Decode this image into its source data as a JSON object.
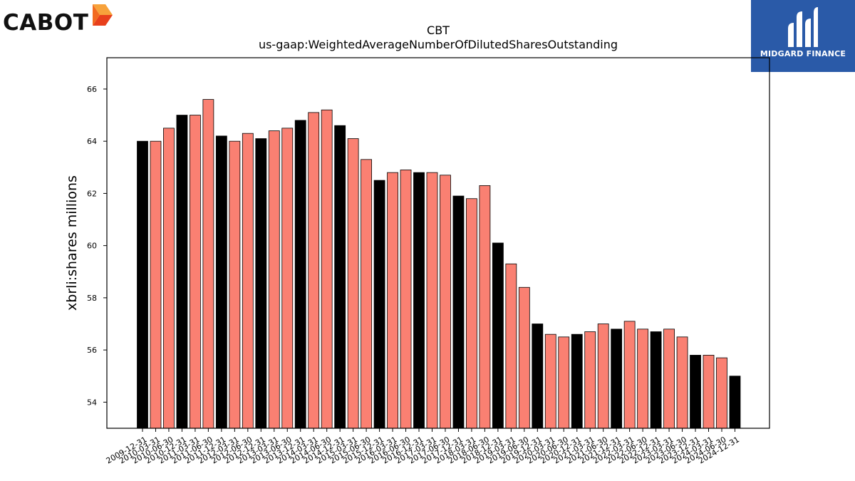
{
  "logos": {
    "left_brand": "CABOT",
    "right_brand": "MIDGARD FINANCE"
  },
  "colors": {
    "bar_black": "#000000",
    "bar_salmon": "#fa8072",
    "midgard_blue": "#2a5aa8",
    "cabot_orange": "#f26b21"
  },
  "chart_data": {
    "type": "bar",
    "title": "CBT",
    "subtitle": "us-gaap:WeightedAverageNumberOfDilutedSharesOutstanding",
    "ylabel": "xbrli:shares millions",
    "xlabel": "",
    "ylim": [
      53,
      67.2
    ],
    "yticks": [
      54,
      56,
      58,
      60,
      62,
      64,
      66
    ],
    "grid": false,
    "categories": [
      "2009-12-31",
      "2010-03-31",
      "2010-06-30",
      "2010-12-31",
      "2011-03-31",
      "2011-06-30",
      "2011-12-31",
      "2012-03-31",
      "2012-06-30",
      "2012-12-31",
      "2013-03-31",
      "2013-06-30",
      "2013-12-31",
      "2014-03-31",
      "2014-06-30",
      "2014-12-31",
      "2015-03-31",
      "2015-06-30",
      "2015-12-31",
      "2016-03-31",
      "2016-06-30",
      "2016-12-31",
      "2017-03-31",
      "2017-06-30",
      "2017-12-31",
      "2018-03-31",
      "2018-06-30",
      "2018-12-31",
      "2019-03-31",
      "2019-06-30",
      "2019-12-31",
      "2020-03-31",
      "2020-06-30",
      "2020-12-31",
      "2021-03-31",
      "2021-06-30",
      "2021-12-31",
      "2022-03-31",
      "2022-06-30",
      "2022-12-31",
      "2023-03-31",
      "2023-06-30",
      "2023-12-31",
      "2024-03-31",
      "2024-06-30",
      "2024-12-31"
    ],
    "values": [
      64.0,
      64.0,
      64.5,
      65.0,
      65.0,
      65.6,
      64.2,
      64.0,
      64.3,
      64.1,
      64.4,
      64.5,
      64.8,
      65.1,
      65.2,
      64.6,
      64.1,
      63.3,
      62.5,
      62.8,
      62.9,
      62.8,
      62.8,
      62.7,
      61.9,
      61.8,
      62.3,
      60.1,
      59.3,
      58.4,
      57.0,
      56.6,
      56.5,
      56.6,
      56.7,
      57.0,
      56.8,
      57.1,
      56.8,
      56.7,
      56.8,
      56.5,
      55.8,
      55.8,
      55.7,
      55.0
    ],
    "bar_colors": [
      "black",
      "salmon",
      "salmon",
      "black",
      "salmon",
      "salmon",
      "black",
      "salmon",
      "salmon",
      "black",
      "salmon",
      "salmon",
      "black",
      "salmon",
      "salmon",
      "black",
      "salmon",
      "salmon",
      "black",
      "salmon",
      "salmon",
      "black",
      "salmon",
      "salmon",
      "black",
      "salmon",
      "salmon",
      "black",
      "salmon",
      "salmon",
      "black",
      "salmon",
      "salmon",
      "black",
      "salmon",
      "salmon",
      "black",
      "salmon",
      "salmon",
      "black",
      "salmon",
      "salmon",
      "black",
      "salmon",
      "salmon",
      "black"
    ]
  }
}
